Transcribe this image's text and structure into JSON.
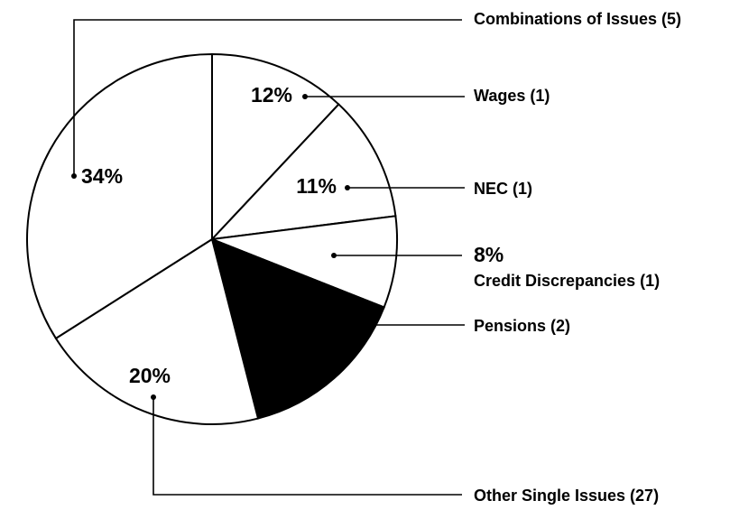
{
  "chart_data": {
    "type": "pie",
    "categories": [
      "Wages (1)",
      "NEC (1)",
      "Credit Discrepancies (1)",
      "Pensions (2)",
      "Other Single Issues (27)",
      "Combinations of Issues (5)"
    ],
    "values": [
      12,
      11,
      8,
      15,
      20,
      34
    ],
    "value_labels": [
      "12%",
      "11%",
      "8%",
      "15%",
      "20%",
      "34%"
    ],
    "colors": [
      "#ffffff",
      "#ffffff",
      "#ffffff",
      "#000000",
      "#ffffff",
      "#ffffff"
    ]
  }
}
